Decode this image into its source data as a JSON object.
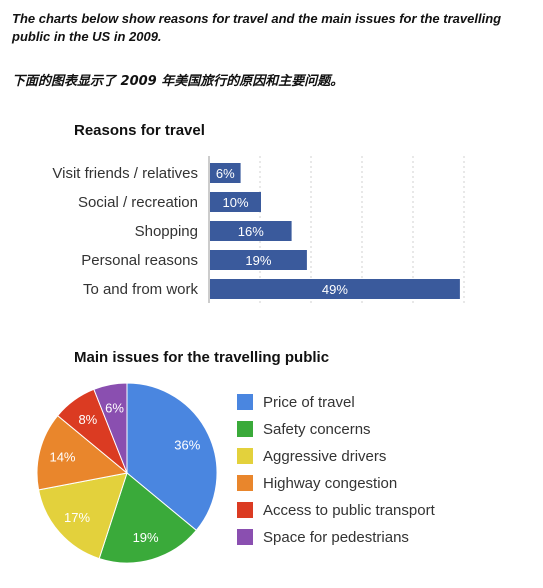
{
  "intro": {
    "en": "The charts below show reasons for travel and the main issues for the travelling public in the US in 2009.",
    "cn": "下面的图表显示了 2009 年美国旅行的原因和主要问题。"
  },
  "chart_data": [
    {
      "type": "bar",
      "orientation": "horizontal",
      "title": "Reasons for travel",
      "categories": [
        "Visit friends / relatives",
        "Social / recreation",
        "Shopping",
        "Personal reasons",
        "To and from work"
      ],
      "values": [
        6,
        10,
        16,
        19,
        49
      ],
      "value_labels": [
        "6%",
        "10%",
        "16%",
        "19%",
        "49%"
      ],
      "unit": "%",
      "xlim": [
        0,
        50
      ],
      "grid": true,
      "bar_color": "#3a5a9c"
    },
    {
      "type": "pie",
      "title": "Main issues for the travelling public",
      "legend_position": "right",
      "slices": [
        {
          "label": "Price of travel",
          "value": 36,
          "value_label": "36%",
          "color": "#4a86e0"
        },
        {
          "label": "Safety concerns",
          "value": 19,
          "value_label": "19%",
          "color": "#3aaa3a"
        },
        {
          "label": "Aggressive drivers",
          "value": 17,
          "value_label": "17%",
          "color": "#e3d13c"
        },
        {
          "label": "Highway congestion",
          "value": 14,
          "value_label": "14%",
          "color": "#e9862c"
        },
        {
          "label": "Access to public transport",
          "value": 8,
          "value_label": "8%",
          "color": "#db3b22"
        },
        {
          "label": "Space for pedestrians",
          "value": 6,
          "value_label": "6%",
          "color": "#8a4fb0"
        }
      ]
    }
  ]
}
